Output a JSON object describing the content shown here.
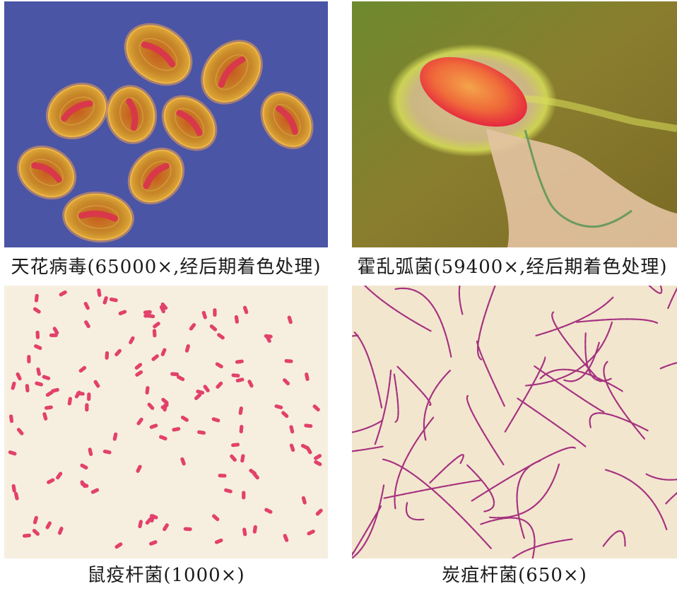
{
  "panels": [
    {
      "caption": "天花病毒(65000×,经后期着色处理)",
      "image": "smallpox-virus-micrograph",
      "background": "#4a55a5"
    },
    {
      "caption": "霍乱弧菌(59400×,经后期着色处理)",
      "image": "vibrio-cholerae-micrograph",
      "background": "#7a8030"
    },
    {
      "caption": "鼠疫杆菌(1000×)",
      "image": "plague-bacillus-micrograph",
      "background": "#f6efdf"
    },
    {
      "caption": "炭疽杆菌(650×)",
      "image": "anthrax-bacillus-micrograph",
      "background": "#f3e6cf"
    }
  ]
}
